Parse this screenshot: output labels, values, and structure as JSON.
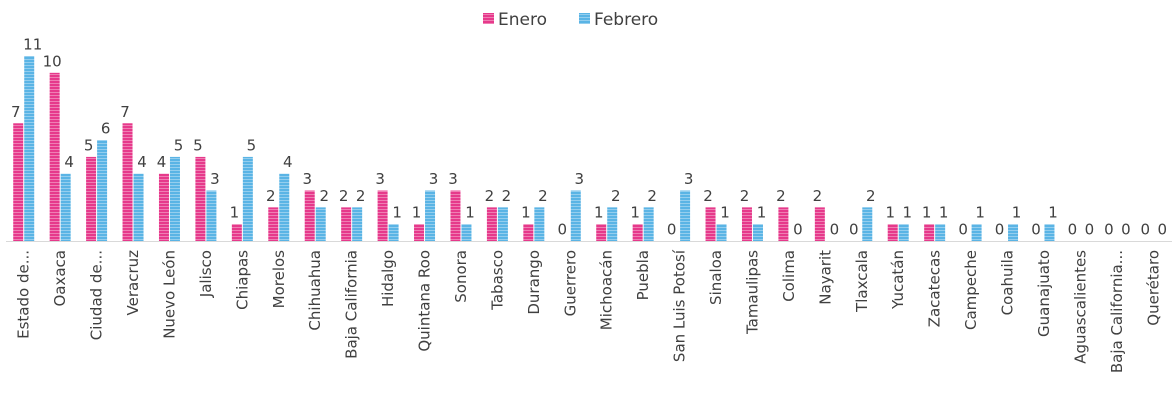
{
  "chart_data": {
    "type": "bar",
    "categories": [
      "Estado de...",
      "Oaxaca",
      "Ciudad de...",
      "Veracruz",
      "Nuevo León",
      "Jalisco",
      "Chiapas",
      "Morelos",
      "Chihuahua",
      "Baja California",
      "Hidalgo",
      "Quintana Roo",
      "Sonora",
      "Tabasco",
      "Durango",
      "Guerrero",
      "Michoacán",
      "Puebla",
      "San Luis Potosí",
      "Sinaloa",
      "Tamaulipas",
      "Colima",
      "Nayarit",
      "Tlaxcala",
      "Yucatán",
      "Zacatecas",
      "Campeche",
      "Coahuila",
      "Guanajuato",
      "Aguascalientes",
      "Baja California...",
      "Querétaro"
    ],
    "series": [
      {
        "name": "Enero",
        "color": "#e6398b",
        "values": [
          7,
          10,
          5,
          7,
          4,
          5,
          1,
          2,
          3,
          2,
          3,
          1,
          3,
          2,
          1,
          0,
          1,
          1,
          0,
          2,
          2,
          2,
          2,
          0,
          1,
          1,
          0,
          0,
          0,
          0,
          0,
          0
        ]
      },
      {
        "name": "Febrero",
        "color": "#5ab4e5",
        "values": [
          11,
          4,
          6,
          4,
          5,
          3,
          5,
          4,
          2,
          2,
          1,
          3,
          1,
          2,
          2,
          3,
          2,
          2,
          3,
          1,
          1,
          0,
          0,
          2,
          1,
          1,
          1,
          1,
          1,
          0,
          0,
          0
        ]
      }
    ],
    "legend": "top"
  }
}
